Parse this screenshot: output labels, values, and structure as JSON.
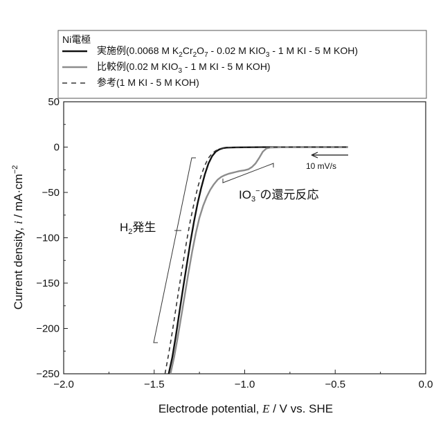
{
  "chart_data": {
    "type": "line",
    "xlabel_parts": [
      "Electrode potential, ",
      "E",
      " / V vs. SHE"
    ],
    "ylabel_parts": [
      "Current density, ",
      "i",
      " / mA·cm",
      "−2"
    ],
    "xlim": [
      -2.0,
      0.0
    ],
    "ylim": [
      -250,
      50
    ],
    "x_ticks": [
      -2.0,
      -1.5,
      -1.0,
      -0.5,
      0.0
    ],
    "x_tick_labels": [
      "−2.0",
      "−1.5",
      "−1.0",
      "−0.5",
      "0.0"
    ],
    "y_ticks": [
      -250,
      -200,
      -150,
      -100,
      -50,
      0,
      50
    ],
    "y_tick_labels": [
      "−250",
      "−200",
      "−150",
      "−100",
      "−50",
      "0",
      "50"
    ],
    "grid": false,
    "legend": {
      "placement": "top",
      "title": "Ni電極",
      "entries": [
        {
          "label_parts": [
            "実施例(0.0068 M K",
            "2",
            "Cr",
            "2",
            "O",
            "7",
            " - 0.02 M KIO",
            "3",
            " - 1 M KI - 5 M KOH)"
          ],
          "color": "#111111",
          "style": "solid",
          "width": 2.6
        },
        {
          "label_parts": [
            "比較例(0.02 M KIO",
            "3",
            " - 1 M KI - 5 M KOH)"
          ],
          "color": "#8c8c8c",
          "style": "solid",
          "width": 2.6
        },
        {
          "label_parts": [
            "参考(1 M KI - 5 M KOH)"
          ],
          "color": "#333333",
          "style": "dashed",
          "width": 1.6
        }
      ]
    },
    "series": [
      {
        "color": "#111111",
        "style": "solid",
        "width": 2.4,
        "x": [
          -1.42,
          -1.4,
          -1.38,
          -1.36,
          -1.34,
          -1.32,
          -1.3,
          -1.28,
          -1.26,
          -1.24,
          -1.22,
          -1.2,
          -1.18,
          -1.16,
          -1.14,
          -1.12,
          -1.1,
          -1.05,
          -1.0,
          -0.9,
          -0.8,
          -0.7,
          -0.6,
          -0.5,
          -0.43
        ],
        "y": [
          -250,
          -232,
          -208,
          -181,
          -155,
          -130,
          -105,
          -82,
          -62,
          -45,
          -30,
          -18,
          -10,
          -5,
          -2.5,
          -1.2,
          -0.6,
          -0.3,
          -0.2,
          -0.1,
          -0.05,
          0,
          0,
          0,
          0
        ]
      },
      {
        "color": "#8c8c8c",
        "style": "solid",
        "width": 2.4,
        "x": [
          -1.41,
          -1.39,
          -1.37,
          -1.35,
          -1.33,
          -1.31,
          -1.29,
          -1.27,
          -1.25,
          -1.23,
          -1.21,
          -1.19,
          -1.17,
          -1.15,
          -1.13,
          -1.11,
          -1.09,
          -1.07,
          -1.05,
          -1.03,
          -1.0,
          -0.98,
          -0.96,
          -0.94,
          -0.92,
          -0.9,
          -0.88,
          -0.86,
          -0.8,
          -0.7,
          -0.6,
          -0.5,
          -0.43
        ],
        "y": [
          -250,
          -232,
          -210,
          -186,
          -162,
          -138,
          -115,
          -95,
          -78,
          -65,
          -55,
          -47,
          -41,
          -36,
          -33,
          -31,
          -29.5,
          -28.5,
          -27.5,
          -26.5,
          -25.5,
          -24.5,
          -22,
          -18,
          -12,
          -5,
          -1.5,
          -0.5,
          -0.2,
          0,
          0,
          0,
          0
        ]
      },
      {
        "color": "#333333",
        "style": "dashed",
        "width": 1.6,
        "x": [
          -1.44,
          -1.42,
          -1.4,
          -1.38,
          -1.36,
          -1.34,
          -1.32,
          -1.3,
          -1.28,
          -1.26,
          -1.24,
          -1.22,
          -1.2,
          -1.18,
          -1.16,
          -1.14,
          -1.12,
          -1.1,
          -1.05,
          -1.0,
          -0.9,
          -0.8,
          -0.7,
          -0.6,
          -0.5,
          -0.43
        ],
        "y": [
          -250,
          -228,
          -204,
          -178,
          -152,
          -127,
          -103,
          -81,
          -62,
          -45,
          -31,
          -20,
          -12,
          -7,
          -4,
          -2,
          -1,
          -0.5,
          -0.2,
          -0.1,
          -0.05,
          0,
          0,
          0,
          0,
          0
        ]
      }
    ],
    "annotations": [
      {
        "id": "h2",
        "parts": [
          "H",
          "2",
          "発生"
        ]
      },
      {
        "id": "io3",
        "parts": [
          "IO",
          "3",
          "−",
          "の還元反応"
        ]
      },
      {
        "id": "rate",
        "text": "10 mV/s"
      }
    ]
  }
}
